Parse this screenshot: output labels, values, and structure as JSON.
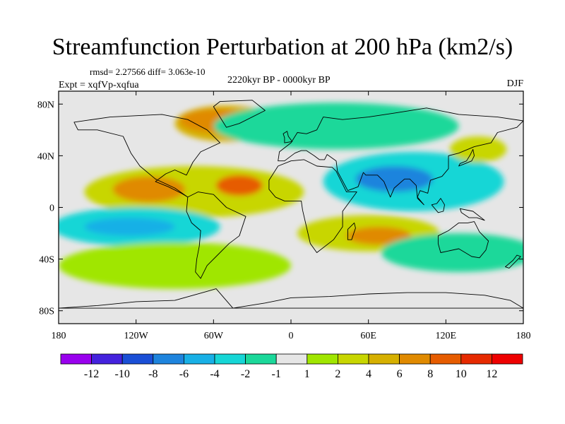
{
  "title": "Streamfunction Perturbation at 200 hPa (km2/s)",
  "stats": "rmsd= 2.27566 diff= 3.063e-10",
  "experiment": "Expt = xqfVp-xqfua",
  "period": "2220kyr BP - 0000kyr BP",
  "season": "DJF",
  "map_data": {
    "projection": "cylindrical-equidistant",
    "lon_range": [
      -180,
      180
    ],
    "lat_range": [
      -90,
      90
    ],
    "lon_ticks": [
      {
        "value": -180,
        "label": "180"
      },
      {
        "value": -120,
        "label": "120W"
      },
      {
        "value": -60,
        "label": "60W"
      },
      {
        "value": 0,
        "label": "0"
      },
      {
        "value": 60,
        "label": "60E"
      },
      {
        "value": 120,
        "label": "120E"
      },
      {
        "value": 180,
        "label": "180"
      }
    ],
    "lat_ticks": [
      {
        "value": 80,
        "label": "80N"
      },
      {
        "value": 40,
        "label": "40N"
      },
      {
        "value": 0,
        "label": "0"
      },
      {
        "value": -40,
        "label": "40S"
      },
      {
        "value": -80,
        "label": "80S"
      }
    ],
    "background_color": "#e6e6e6",
    "regions": [
      {
        "name": "north-atlantic-high",
        "lon": -50,
        "lat": 65,
        "rlon": 40,
        "rlat": 14,
        "value": 5
      },
      {
        "name": "canada-inner",
        "lon": -58,
        "lat": 67,
        "rlon": 28,
        "rlat": 9,
        "value": 6
      },
      {
        "name": "tropical-atlantic-high",
        "lon": -75,
        "lat": 12,
        "rlon": 85,
        "rlat": 20,
        "value": 3
      },
      {
        "name": "brazil-max",
        "lon": -40,
        "lat": 17,
        "rlon": 18,
        "rlat": 8,
        "value": 9
      },
      {
        "name": "tropical-west-max",
        "lon": -110,
        "lat": 14,
        "rlon": 28,
        "rlat": 10,
        "value": 6
      },
      {
        "name": "south-africa-high",
        "lon": 60,
        "lat": -20,
        "rlon": 55,
        "rlat": 14,
        "value": 3
      },
      {
        "name": "madagascar-max",
        "lon": 68,
        "lat": -22,
        "rlon": 25,
        "rlat": 7,
        "value": 7
      },
      {
        "name": "south-pacific-low",
        "lon": -120,
        "lat": -15,
        "rlon": 65,
        "rlat": 15,
        "value": -3
      },
      {
        "name": "south-pacific-core",
        "lon": -125,
        "lat": -15,
        "rlon": 35,
        "rlat": 7,
        "value": -5
      },
      {
        "name": "eurasia-low",
        "lon": 35,
        "lat": 63,
        "rlon": 95,
        "rlat": 18,
        "value": -2
      },
      {
        "name": "asia-low",
        "lon": 95,
        "lat": 20,
        "rlon": 70,
        "rlat": 23,
        "value": -4
      },
      {
        "name": "tibet-core",
        "lon": 80,
        "lat": 22,
        "rlon": 30,
        "rlat": 10,
        "value": -8
      },
      {
        "name": "pacific-north-high",
        "lon": 145,
        "lat": 45,
        "rlon": 22,
        "rlat": 10,
        "value": 2
      },
      {
        "name": "south-indian-low",
        "lon": 130,
        "lat": -35,
        "rlon": 60,
        "rlat": 15,
        "value": -2
      },
      {
        "name": "southern-ocean-ring",
        "lon": -90,
        "lat": -45,
        "rlon": 90,
        "rlat": 18,
        "value": 1.5
      }
    ]
  },
  "colorbar": {
    "labels": [
      "-12",
      "-10",
      "-8",
      "-6",
      "-4",
      "-2",
      "-1",
      "1",
      "2",
      "4",
      "6",
      "8",
      "10",
      "12"
    ],
    "colors": [
      "#9900ee",
      "#4422dd",
      "#1a4fd6",
      "#1e84dd",
      "#18b0e6",
      "#16d6d6",
      "#1bd89a",
      "#e6e6e6",
      "#a0e600",
      "#c8d600",
      "#d6b000",
      "#e08a00",
      "#e65c00",
      "#e62a00",
      "#ee0000"
    ]
  }
}
